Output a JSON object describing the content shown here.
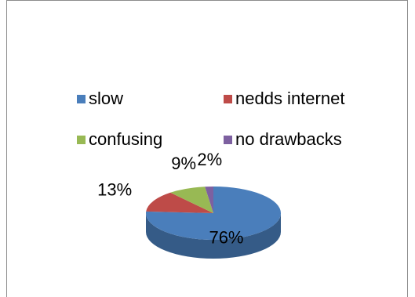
{
  "chart_data": {
    "type": "pie",
    "title": "",
    "categories": [
      "slow",
      "nedds internet",
      "confusing",
      "no drawbacks"
    ],
    "values": [
      76,
      13,
      9,
      2
    ],
    "data_labels": [
      "76%",
      "13%",
      "9%",
      "2%"
    ],
    "colors": [
      "#4a7ebb",
      "#be4b48",
      "#98b954",
      "#7d60a0"
    ],
    "legend_position": "top",
    "three_d": true
  },
  "legend": {
    "items": [
      {
        "label": "slow",
        "color": "#4a7ebb"
      },
      {
        "label": "nedds internet",
        "color": "#be4b48"
      },
      {
        "label": "confusing",
        "color": "#98b954"
      },
      {
        "label": "no drawbacks",
        "color": "#7d60a0"
      }
    ]
  }
}
